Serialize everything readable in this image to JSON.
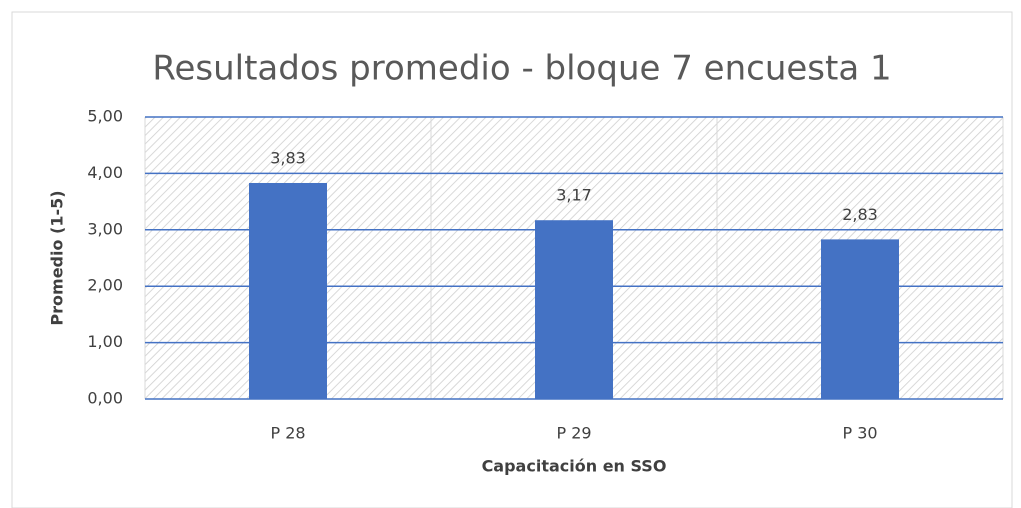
{
  "chart_data": {
    "type": "bar",
    "title": "Resultados promedio - bloque 7 encuesta 1",
    "x_label": "Capacitación en SSO",
    "y_label": "Promedio (1-5)",
    "categories": [
      "P 28",
      "P 29",
      "P 30"
    ],
    "values": [
      3.83,
      3.17,
      2.83
    ],
    "value_labels": [
      "3,83",
      "3,17",
      "2,83"
    ],
    "color": "#4472c4",
    "ylim": [
      0,
      5
    ],
    "yticks": [
      {
        "value": 0,
        "label": "0,00"
      },
      {
        "value": 1,
        "label": "1,00"
      },
      {
        "value": 2,
        "label": "2,00"
      },
      {
        "value": 3,
        "label": "3,00"
      },
      {
        "value": 4,
        "label": "4,00"
      },
      {
        "value": 5,
        "label": "5,00"
      }
    ],
    "grid": true,
    "grid_color": "#4472c4"
  }
}
